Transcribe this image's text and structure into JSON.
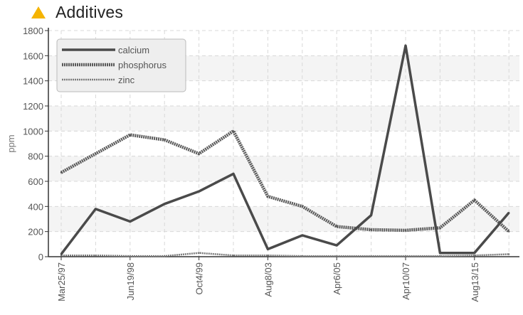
{
  "header": {
    "title": "Additives",
    "icon": "warning-triangle-icon",
    "icon_color": "#f5b400"
  },
  "chart_data": {
    "type": "line",
    "title": "Additives",
    "ylabel": "ppm",
    "xlabel": "",
    "ylim": [
      0,
      1800
    ],
    "yticks": [
      0,
      200,
      400,
      600,
      800,
      1000,
      1200,
      1400,
      1600,
      1800
    ],
    "grid": true,
    "legend_position": "top-left",
    "x_labels": [
      "Mar25/97",
      "Jun19/98",
      "Oct4/99",
      "Aug8/03",
      "Apr6/05",
      "Apr10/07",
      "Aug13/15"
    ],
    "x_label_indices": [
      0,
      2,
      4,
      6,
      8,
      10,
      12
    ],
    "n_points": 14,
    "series": [
      {
        "name": "calcium",
        "style": "solid",
        "color": "#4a4a4a",
        "values": [
          20,
          380,
          280,
          420,
          520,
          660,
          60,
          170,
          90,
          330,
          1680,
          30,
          30,
          350
        ]
      },
      {
        "name": "phosphorus",
        "style": "dotted-thick",
        "color": "#5a5a5a",
        "values": [
          670,
          820,
          970,
          930,
          820,
          1000,
          480,
          400,
          240,
          215,
          210,
          230,
          450,
          200
        ]
      },
      {
        "name": "zinc",
        "style": "dotted-thin",
        "color": "#7a7a7a",
        "values": [
          10,
          10,
          5,
          5,
          30,
          10,
          10,
          5,
          5,
          5,
          5,
          5,
          10,
          20
        ]
      }
    ]
  }
}
